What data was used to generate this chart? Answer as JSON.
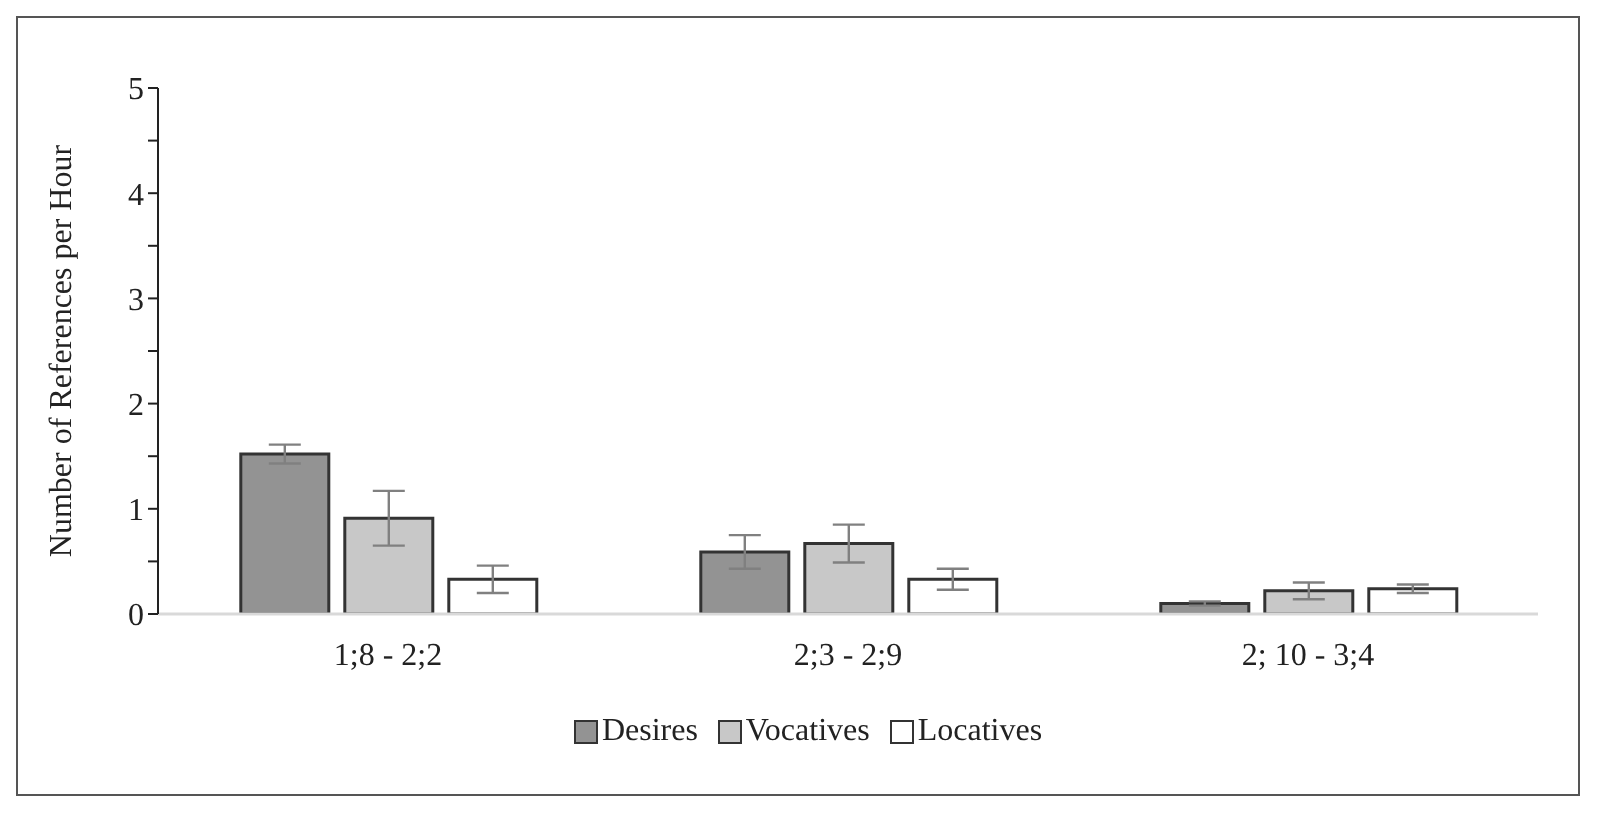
{
  "chart_data": {
    "type": "bar",
    "ylabel": "Number of References per Hour",
    "categories": [
      "1;8 - 2;2",
      "2;3 - 2;9",
      "2; 10 - 3;4"
    ],
    "series": [
      {
        "name": "Desires",
        "color": "#939393",
        "values": [
          1.52,
          0.59,
          0.1
        ],
        "errors": [
          0.09,
          0.16,
          0.02
        ]
      },
      {
        "name": "Vocatives",
        "color": "#c8c8c8",
        "values": [
          0.91,
          0.67,
          0.22
        ],
        "errors": [
          0.26,
          0.18,
          0.08
        ]
      },
      {
        "name": "Locatives",
        "color": "#ffffff",
        "values": [
          0.33,
          0.33,
          0.24
        ],
        "errors": [
          0.13,
          0.1,
          0.04
        ]
      }
    ],
    "ylim": [
      0,
      5
    ],
    "yticks": [
      0,
      {
        "value": 0.5,
        "label": null
      },
      1,
      {
        "value": 1.5,
        "label": null
      },
      2,
      {
        "value": 2.5,
        "label": null
      },
      3,
      {
        "value": 3.5,
        "label": null
      },
      4,
      {
        "value": 4.5,
        "label": null
      },
      5
    ],
    "grid": false,
    "legend": "bottom"
  }
}
